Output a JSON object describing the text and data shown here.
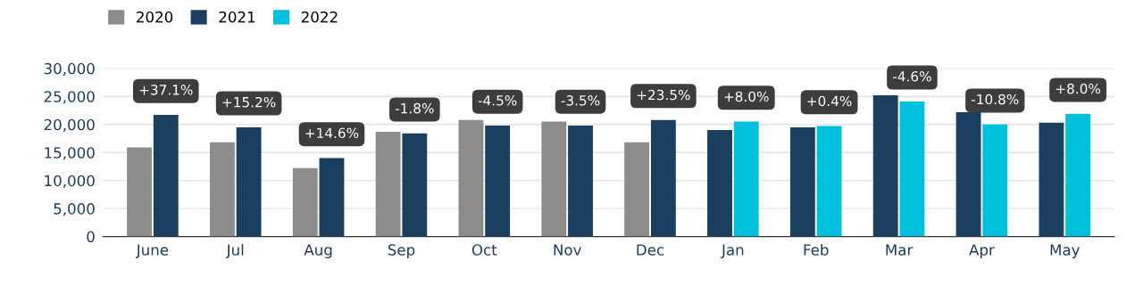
{
  "chart_data": {
    "type": "bar",
    "categories": [
      "June",
      "Jul",
      "Aug",
      "Sep",
      "Oct",
      "Nov",
      "Dec",
      "Jan",
      "Feb",
      "Mar",
      "Apr",
      "May"
    ],
    "series": [
      {
        "name": "2020",
        "color": "#8c8c8c",
        "values": [
          15900,
          16800,
          12200,
          18700,
          20800,
          20500,
          16800,
          null,
          null,
          null,
          null,
          null
        ]
      },
      {
        "name": "2021",
        "color": "#1b3f5e",
        "values": [
          21700,
          19500,
          14000,
          18400,
          19800,
          19800,
          20800,
          19000,
          19500,
          25200,
          22200,
          20300
        ]
      },
      {
        "name": "2022",
        "color": "#00c0dc",
        "values": [
          null,
          null,
          null,
          null,
          null,
          null,
          null,
          20500,
          19700,
          24100,
          20000,
          21900
        ]
      }
    ],
    "ylim": [
      0,
      30000
    ],
    "yticks": [
      {
        "value": 0,
        "label": "0"
      },
      {
        "value": 5000,
        "label": "5,000"
      },
      {
        "value": 10000,
        "label": "10,000"
      },
      {
        "value": 15000,
        "label": "15,000"
      },
      {
        "value": 20000,
        "label": "20,000"
      },
      {
        "value": 25000,
        "label": "25,000"
      },
      {
        "value": 30000,
        "label": "30,000"
      }
    ],
    "grid": "y",
    "legend": "top left",
    "annotations": [
      {
        "text": "+37.1%",
        "x": "June",
        "y": 21700
      },
      {
        "text": "+15.2%",
        "x": "Jul",
        "y": 19500
      },
      {
        "text": "+14.6%",
        "x": "Aug",
        "y": 14000
      },
      {
        "text": "-1.8%",
        "x": "Sep",
        "y": 18400
      },
      {
        "text": "-4.5%",
        "x": "Oct",
        "y": 19800
      },
      {
        "text": "-3.5%",
        "x": "Nov",
        "y": 19800
      },
      {
        "text": "+23.5%",
        "x": "Dec",
        "y": 20800
      },
      {
        "text": "+8.0%",
        "x": "Jan",
        "y": 20500
      },
      {
        "text": "+0.4%",
        "x": "Feb",
        "y": 19700
      },
      {
        "text": "-4.6%",
        "x": "Mar",
        "y": 24100
      },
      {
        "text": "-10.8%",
        "x": "Apr",
        "y": 20000
      },
      {
        "text": "+8.0%",
        "x": "May",
        "y": 21900
      }
    ]
  }
}
